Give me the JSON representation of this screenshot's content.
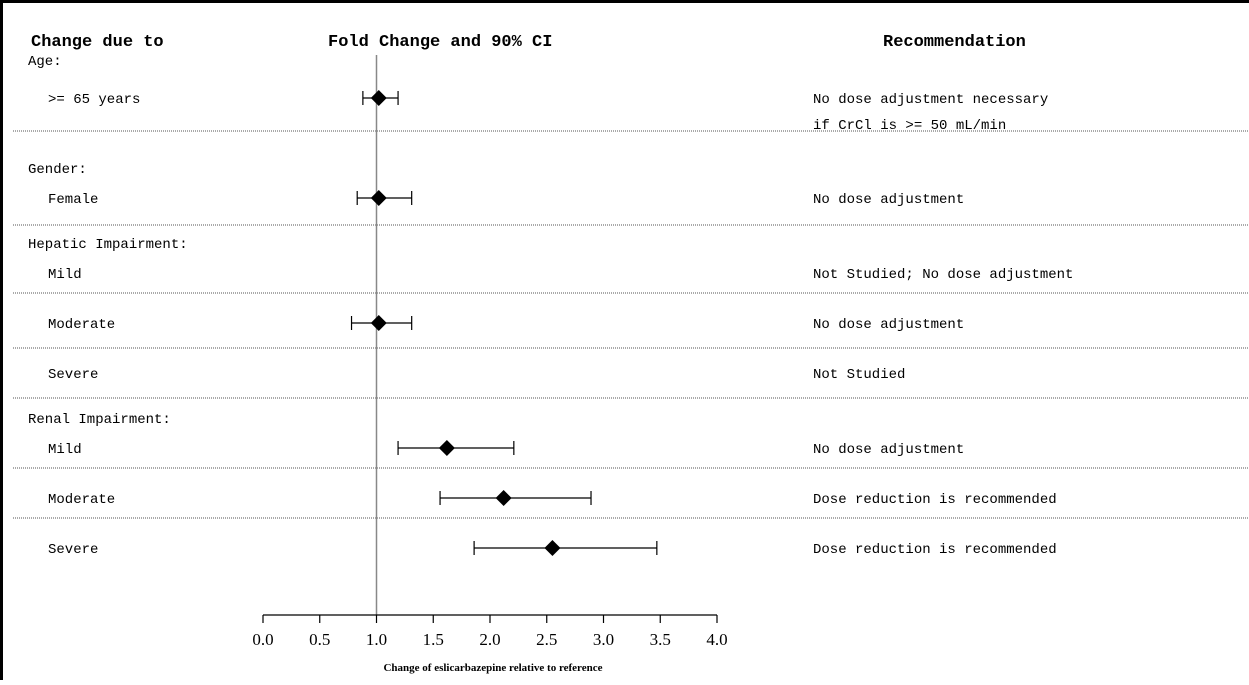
{
  "headers": {
    "col1": "Change due to",
    "col2": "Fold Change and 90% CI",
    "col3": "Recommendation"
  },
  "chart_data": {
    "type": "forest",
    "title": "",
    "xlabel": "Change of eslicarbazepine relative to reference",
    "xlim": [
      0.0,
      4.0
    ],
    "xticks": [
      "0.0",
      "0.5",
      "1.0",
      "1.5",
      "2.0",
      "2.5",
      "3.0",
      "3.5",
      "4.0"
    ],
    "reference_line": 1.0,
    "groups": [
      {
        "label": "Age:",
        "rows": [
          {
            "label": ">= 65 years",
            "estimate": 1.02,
            "ci": [
              0.88,
              1.19
            ],
            "recommendation": [
              "No dose adjustment necessary",
              "if CrCl is >= 50 mL/min"
            ]
          }
        ]
      },
      {
        "label": "Gender:",
        "rows": [
          {
            "label": "Female",
            "estimate": 1.02,
            "ci": [
              0.83,
              1.31
            ],
            "recommendation": [
              "No dose adjustment"
            ]
          }
        ]
      },
      {
        "label": "Hepatic Impairment:",
        "rows": [
          {
            "label": "Mild",
            "estimate": null,
            "ci": null,
            "recommendation": [
              "Not Studied; No dose adjustment"
            ]
          },
          {
            "label": "Moderate",
            "estimate": 1.02,
            "ci": [
              0.78,
              1.31
            ],
            "recommendation": [
              "No dose adjustment"
            ]
          },
          {
            "label": "Severe",
            "estimate": null,
            "ci": null,
            "recommendation": [
              "Not Studied"
            ]
          }
        ]
      },
      {
        "label": "Renal Impairment:",
        "rows": [
          {
            "label": "Mild",
            "estimate": 1.62,
            "ci": [
              1.19,
              2.21
            ],
            "recommendation": [
              "No dose adjustment"
            ]
          },
          {
            "label": "Moderate",
            "estimate": 2.12,
            "ci": [
              1.56,
              2.89
            ],
            "recommendation": [
              "Dose reduction is recommended"
            ]
          },
          {
            "label": "Severe",
            "estimate": 2.55,
            "ci": [
              1.86,
              3.47
            ],
            "recommendation": [
              "Dose reduction is recommended"
            ]
          }
        ]
      }
    ]
  }
}
